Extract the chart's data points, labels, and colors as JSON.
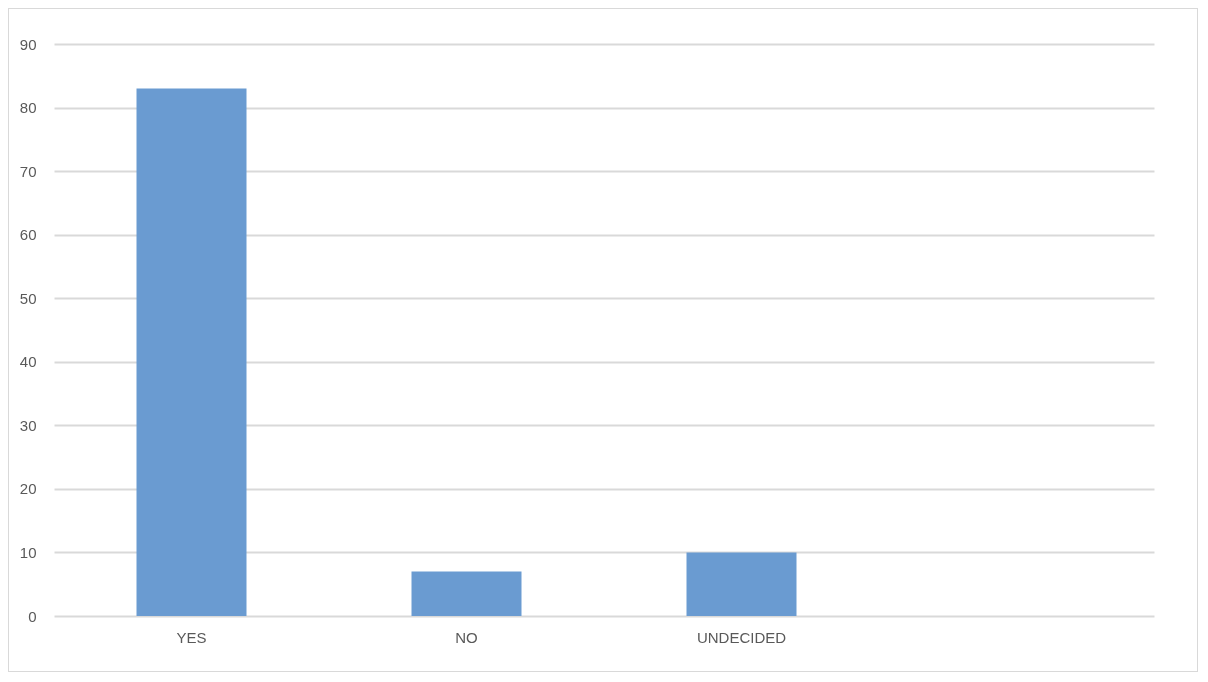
{
  "chart_data": {
    "type": "bar",
    "categories": [
      "YES",
      "NO",
      "UNDECIDED",
      null
    ],
    "values": [
      83,
      7,
      10,
      null
    ],
    "color": "#6a9bd1",
    "ylim": [
      0,
      90
    ],
    "yticks": [
      0,
      10,
      20,
      30,
      40,
      50,
      60,
      70,
      80,
      90
    ],
    "grid": "y"
  }
}
